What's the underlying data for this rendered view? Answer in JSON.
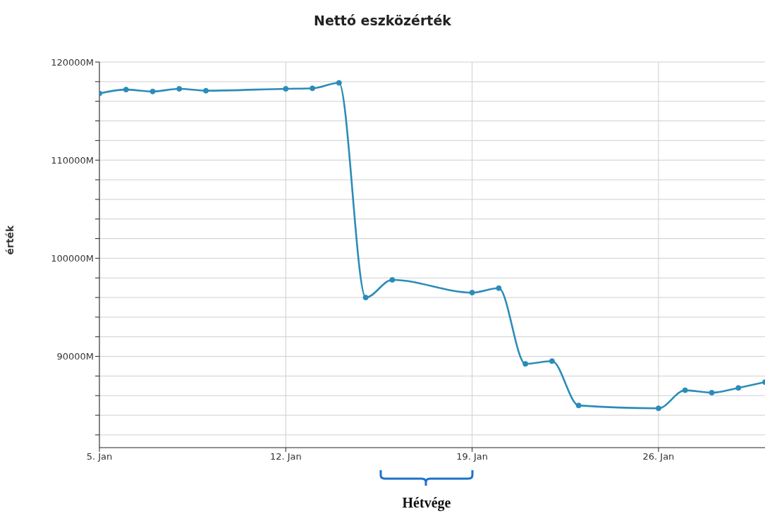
{
  "chart_data": {
    "type": "line",
    "title": "Nettó eszközérték",
    "ylabel": "érték",
    "x": [
      "--01-05",
      "--01-06",
      "--01-07",
      "--01-08",
      "--01-09",
      "--01-12",
      "--01-13",
      "--01-14",
      "--01-15",
      "--01-16",
      "--01-19",
      "--01-20",
      "--01-21",
      "--01-22",
      "--01-23",
      "--01-26",
      "--01-27",
      "--01-28",
      "--01-29",
      "--01-30"
    ],
    "series": [
      {
        "color": "#2b8cb8",
        "values": [
          116800,
          117190,
          117000,
          117270,
          117080,
          117270,
          117320,
          117880,
          96000,
          97800,
          96500,
          96950,
          89240,
          89520,
          85000,
          84710,
          86550,
          86300,
          86790,
          87380
        ]
      }
    ],
    "xlim": [
      "--01-05",
      "--01-30"
    ],
    "xticks": [
      {
        "value": "--01-05",
        "label": "5. Jan"
      },
      {
        "value": "--01-12",
        "label": "12. Jan"
      },
      {
        "value": "--01-19",
        "label": "19. Jan"
      },
      {
        "value": "--01-26",
        "label": "26. Jan"
      }
    ],
    "ylim": [
      80700,
      120000
    ],
    "yticks": [
      {
        "value": 82000,
        "label": null
      },
      {
        "value": 84000,
        "label": null
      },
      {
        "value": 86000,
        "label": null
      },
      {
        "value": 88000,
        "label": null
      },
      {
        "value": 90000,
        "label": "90000M"
      },
      {
        "value": 92000,
        "label": null
      },
      {
        "value": 94000,
        "label": null
      },
      {
        "value": 96000,
        "label": null
      },
      {
        "value": 98000,
        "label": null
      },
      {
        "value": 100000,
        "label": "100000M"
      },
      {
        "value": 102000,
        "label": null
      },
      {
        "value": 104000,
        "label": null
      },
      {
        "value": 106000,
        "label": null
      },
      {
        "value": 108000,
        "label": null
      },
      {
        "value": 110000,
        "label": "110000M"
      },
      {
        "value": 112000,
        "label": null
      },
      {
        "value": 114000,
        "label": null
      },
      {
        "value": 116000,
        "label": null
      },
      {
        "value": 118000,
        "label": null
      },
      {
        "value": 120000,
        "label": "120000M"
      }
    ],
    "grid": true,
    "marker": "circle",
    "line_style": "solid",
    "legend": false,
    "annotations": [
      "Hétvége"
    ]
  }
}
